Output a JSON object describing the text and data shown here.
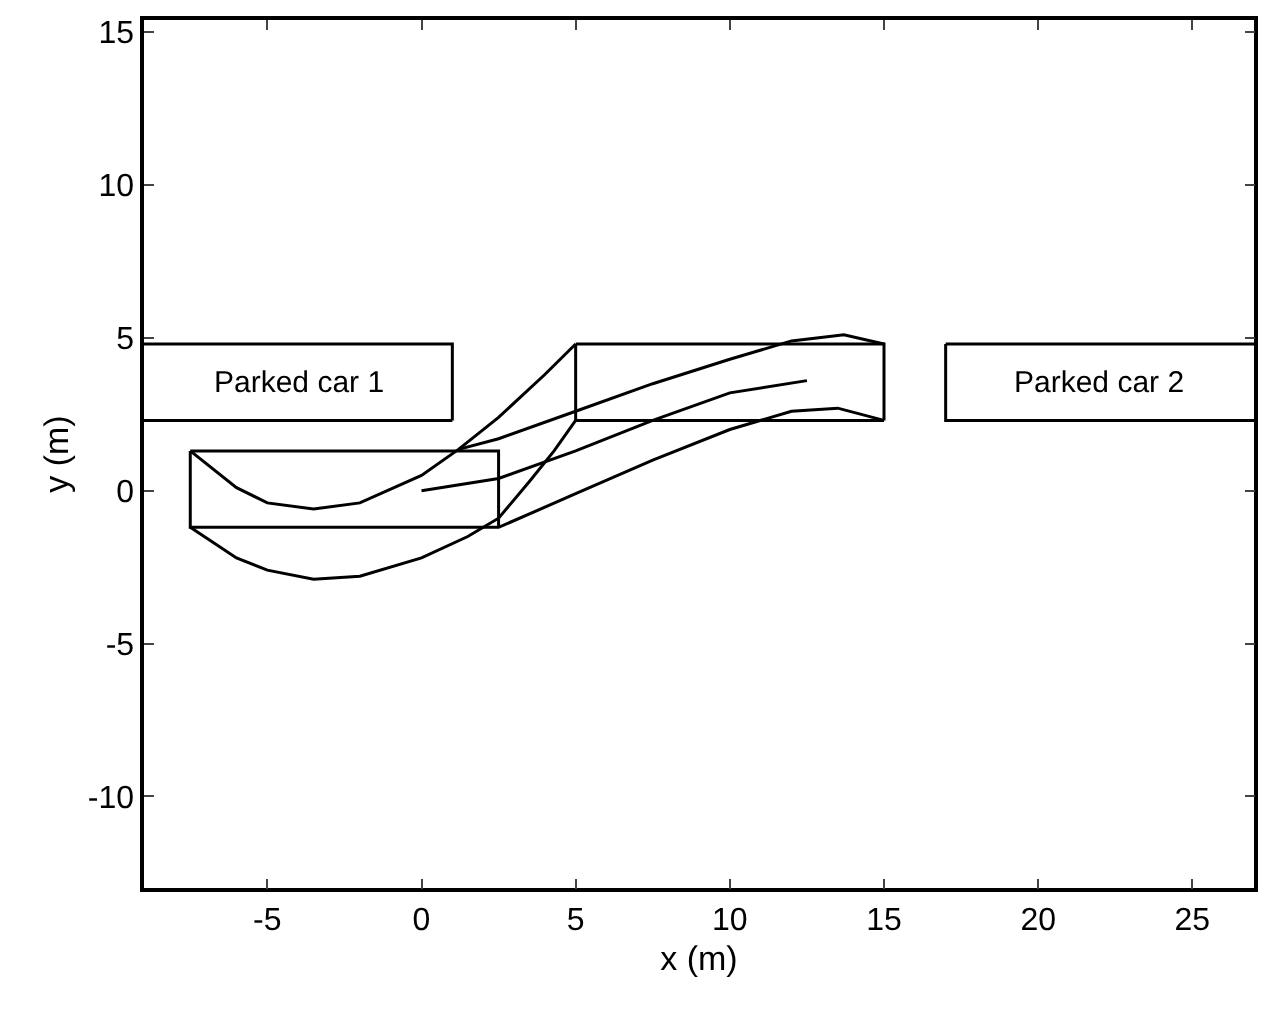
{
  "chart_data": {
    "type": "line",
    "xlabel": "x (m)",
    "ylabel": "y (m)",
    "xlim": [
      -9,
      27
    ],
    "ylim": [
      -13,
      15.4
    ],
    "xticks": [
      -5,
      0,
      5,
      10,
      15,
      20,
      25
    ],
    "yticks": [
      -10,
      -5,
      0,
      5,
      10,
      15
    ],
    "grid": false,
    "marker": "none",
    "line_style": "solid",
    "series": [
      {
        "color": "#000000",
        "x": [
          -9,
          1,
          1
        ],
        "values": [
          4.8,
          4.8,
          2.3
        ]
      },
      {
        "color": "#000000",
        "x": [
          17,
          17,
          27
        ],
        "values": [
          4.8,
          2.3,
          2.3
        ]
      },
      {
        "color": "#000000",
        "x": [
          -9,
          1
        ],
        "values": [
          2.3,
          2.3
        ]
      },
      {
        "color": "#000000",
        "x": [
          17,
          27
        ],
        "values": [
          4.8,
          4.8
        ]
      },
      {
        "color": "#000000",
        "x": [
          -7.5,
          2.5,
          2.5
        ],
        "values": [
          1.3,
          1.3,
          -1.2
        ]
      },
      {
        "color": "#000000",
        "x": [
          -7.5,
          -7.5,
          2.5,
          5,
          7.5,
          10,
          12,
          13.5,
          15
        ],
        "values": [
          1.3,
          -1.2,
          -1.2,
          -0.1,
          1.0,
          2.0,
          2.6,
          2.7,
          2.3
        ]
      },
      {
        "color": "#000000",
        "x": [
          5,
          15,
          15
        ],
        "values": [
          4.8,
          4.8,
          2.3
        ]
      },
      {
        "color": "#000000",
        "x": [
          5,
          5,
          15
        ],
        "values": [
          4.8,
          2.3,
          2.3
        ]
      },
      {
        "color": "#000000",
        "x": [
          -7.5,
          -6,
          -5,
          -3.5,
          -2,
          0,
          1.2,
          2.5,
          4,
          5
        ],
        "values": [
          1.3,
          0.1,
          -0.4,
          -0.6,
          -0.4,
          0.5,
          1.35,
          2.4,
          3.8,
          4.8
        ]
      },
      {
        "color": "#000000",
        "x": [
          -7.5,
          -6,
          -5,
          -3.5,
          -2,
          0,
          1.5,
          2.5,
          3.5,
          4.3,
          5
        ],
        "values": [
          -1.2,
          -2.2,
          -2.6,
          -2.9,
          -2.8,
          -2.2,
          -1.5,
          -0.9,
          0.3,
          1.3,
          2.3
        ]
      },
      {
        "color": "#000000",
        "x": [
          1.2,
          2.5,
          5,
          7.5,
          10,
          12,
          13.7,
          15
        ],
        "values": [
          1.35,
          1.7,
          2.6,
          3.5,
          4.3,
          4.9,
          5.1,
          4.8
        ]
      },
      {
        "color": "#000000",
        "x": [
          0,
          2.5,
          5,
          7.5,
          10,
          12.5
        ],
        "values": [
          0,
          0.4,
          1.3,
          2.3,
          3.2,
          3.6
        ]
      }
    ],
    "annotations": [
      "Parked car 1",
      "Parked car 2"
    ]
  }
}
